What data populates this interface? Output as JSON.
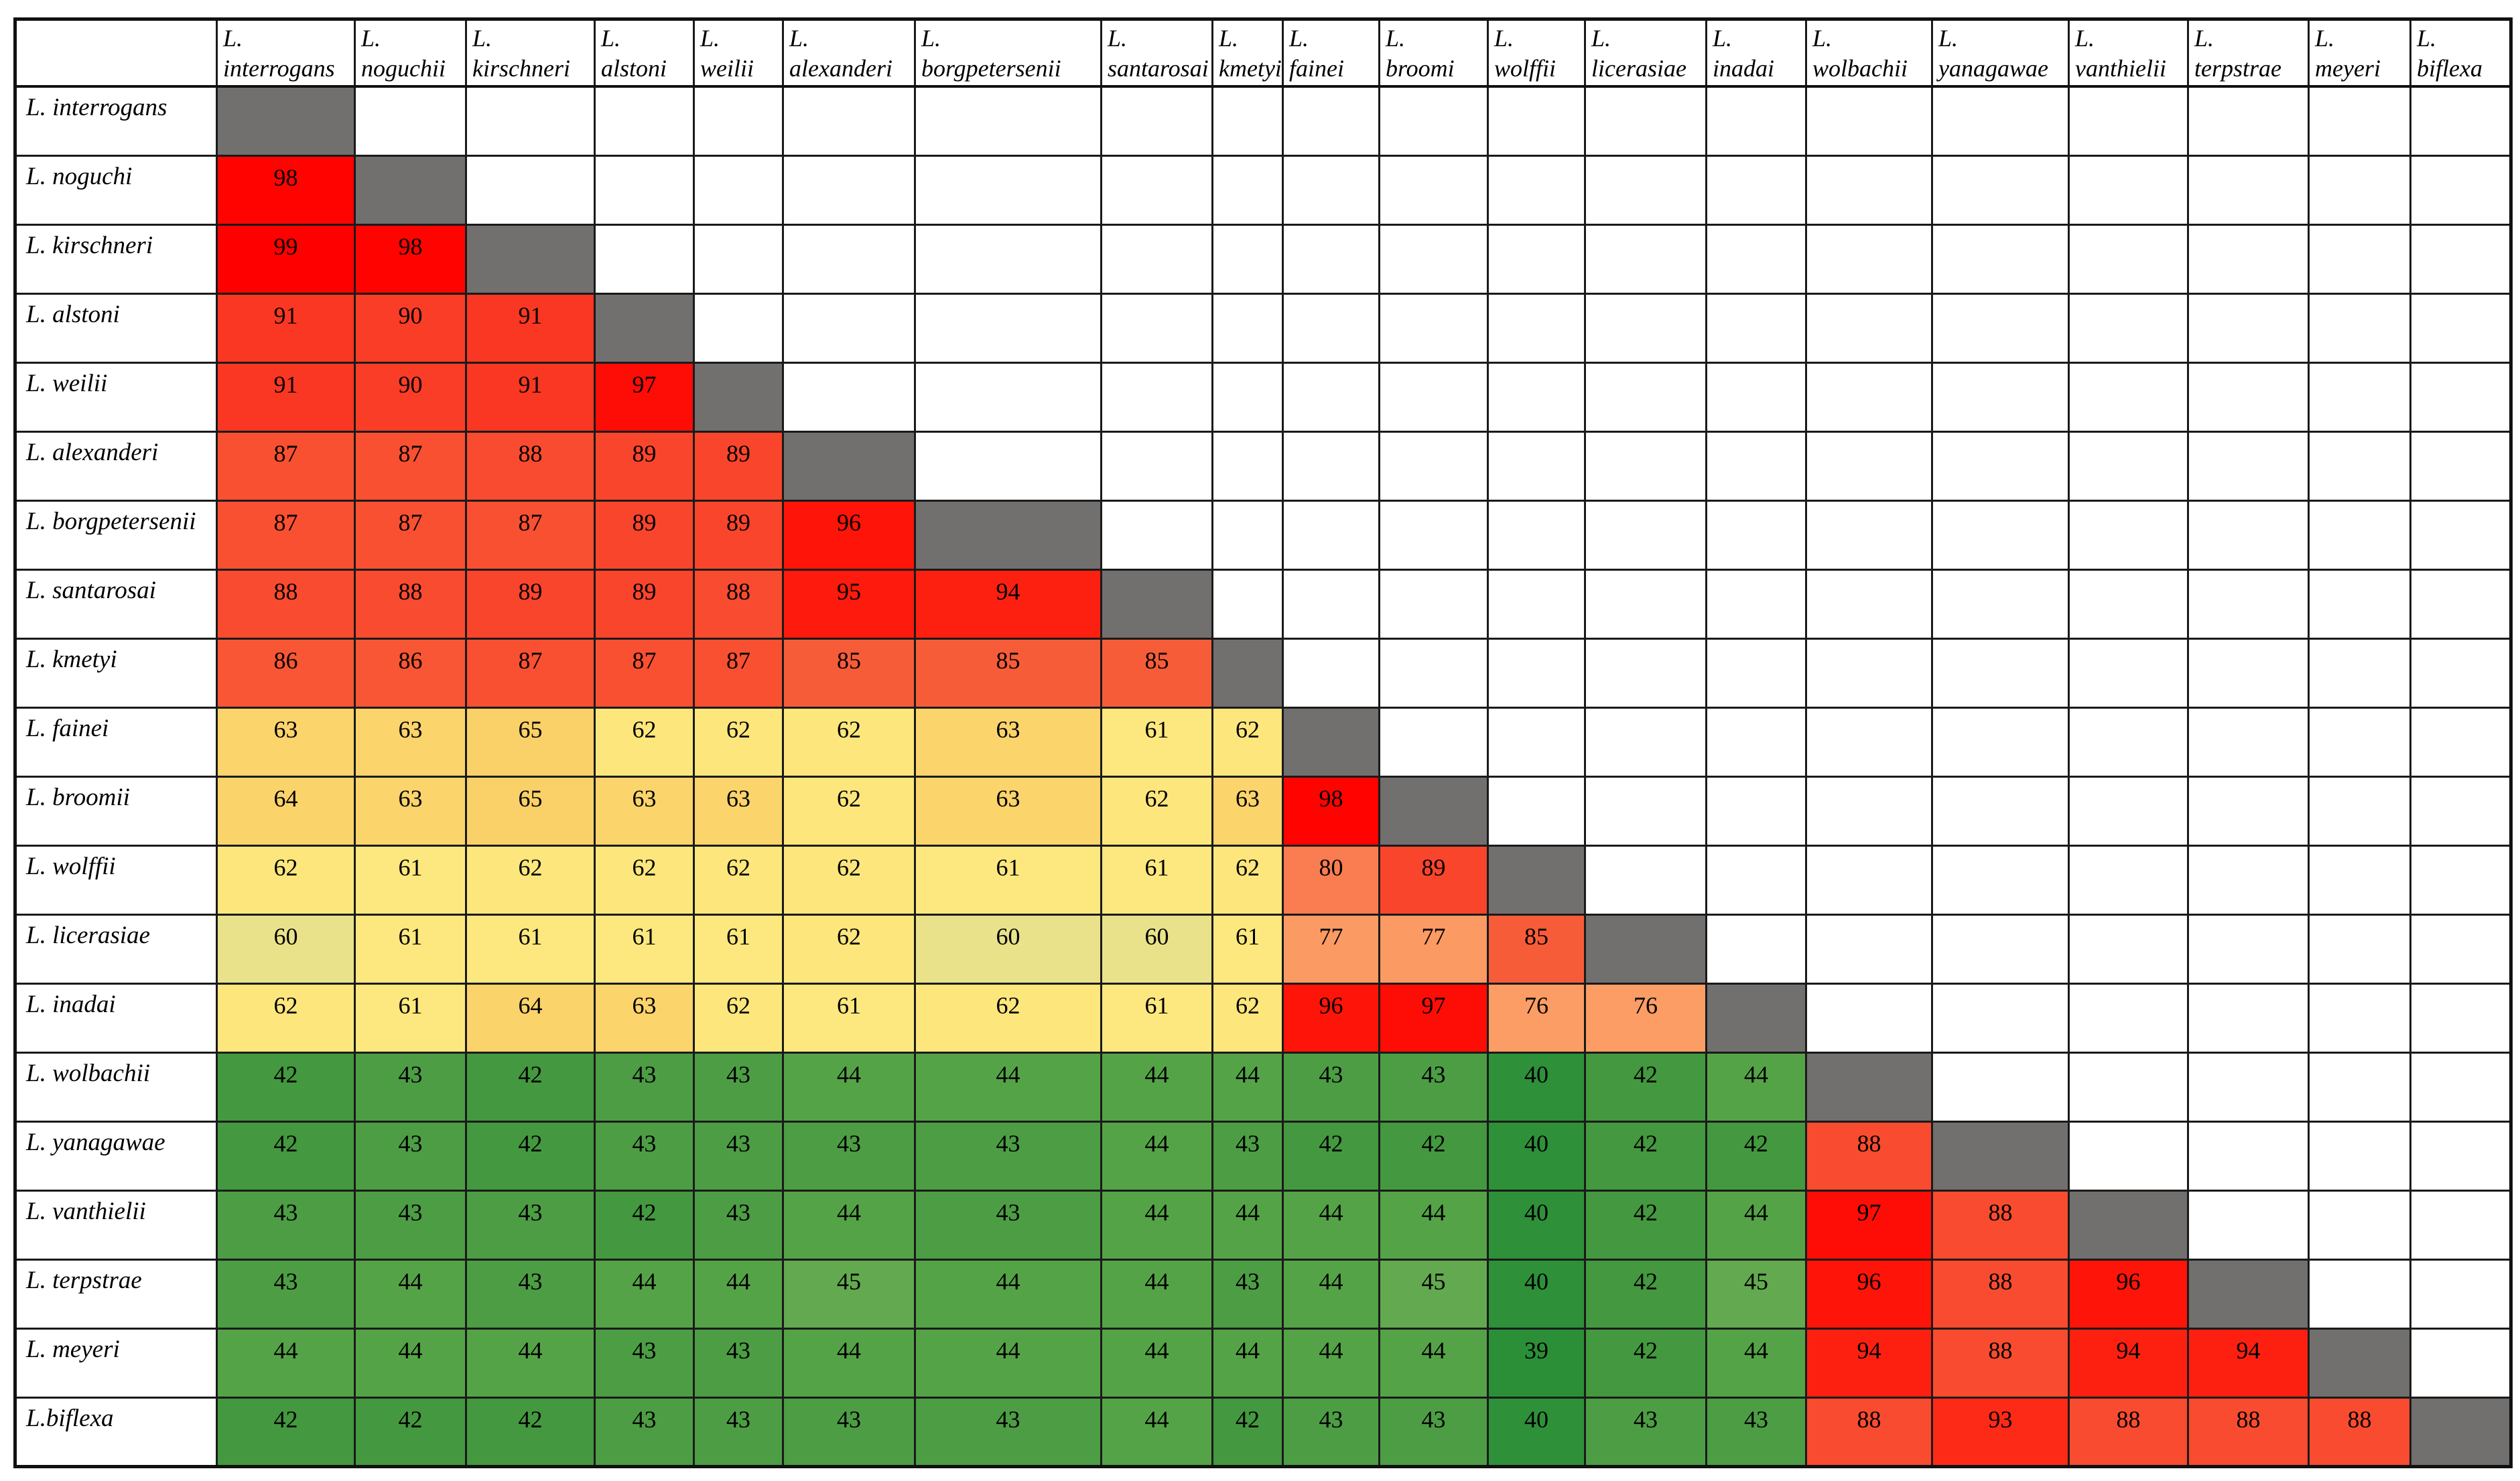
{
  "chart_data": {
    "type": "heatmap",
    "title": "",
    "column_labels": [
      "L. interrogans",
      "L. noguchii",
      "L. kirschneri",
      "L. alstoni",
      "L. weilii",
      "L. alexanderi",
      "L. borgpetersenii",
      "L. santarosai",
      "L. kmetyi",
      "L. fainei",
      "L. broomi",
      "L. wolffii",
      "L. licerasiae",
      "L. inadai",
      "L. wolbachii",
      "L. yanagawae",
      "L. vanthielii",
      "L. terpstrae",
      "L. meyeri",
      "L. biflexa"
    ],
    "row_labels": [
      "L. interrogans",
      "L. noguchi",
      "L. kirschneri",
      "L. alstoni",
      "L. weilii",
      "L. alexanderi",
      "L. borgpetersenii",
      "L. santarosai",
      "L. kmetyi",
      "L. fainei",
      "L. broomii",
      "L. wolffii",
      "L. licerasiae",
      "L. inadai",
      "L. wolbachii",
      "L. yanagawae",
      "L. vanthielii",
      "L. terpstrae",
      "L. meyeri",
      "L.biflexa"
    ],
    "values_lower_triangle": [
      [],
      [
        98
      ],
      [
        99,
        98
      ],
      [
        91,
        90,
        91
      ],
      [
        91,
        90,
        91,
        97
      ],
      [
        87,
        87,
        88,
        89,
        89
      ],
      [
        87,
        87,
        87,
        89,
        89,
        96
      ],
      [
        88,
        88,
        89,
        89,
        88,
        95,
        94
      ],
      [
        86,
        86,
        87,
        87,
        87,
        85,
        85,
        85
      ],
      [
        63,
        63,
        65,
        62,
        62,
        62,
        63,
        61,
        62
      ],
      [
        64,
        63,
        65,
        63,
        63,
        62,
        63,
        62,
        63,
        98
      ],
      [
        62,
        61,
        62,
        62,
        62,
        62,
        61,
        61,
        62,
        80,
        89
      ],
      [
        60,
        61,
        61,
        61,
        61,
        62,
        60,
        60,
        61,
        77,
        77,
        85
      ],
      [
        62,
        61,
        64,
        63,
        62,
        61,
        62,
        61,
        62,
        96,
        97,
        76,
        76
      ],
      [
        42,
        43,
        42,
        43,
        43,
        44,
        44,
        44,
        44,
        43,
        43,
        40,
        42,
        44
      ],
      [
        42,
        43,
        42,
        43,
        43,
        43,
        43,
        44,
        43,
        42,
        42,
        40,
        42,
        42,
        88
      ],
      [
        43,
        43,
        43,
        42,
        43,
        44,
        43,
        44,
        44,
        44,
        44,
        40,
        42,
        44,
        97,
        88
      ],
      [
        43,
        44,
        43,
        44,
        44,
        45,
        44,
        44,
        43,
        44,
        45,
        40,
        42,
        45,
        96,
        88,
        96
      ],
      [
        44,
        44,
        44,
        43,
        43,
        44,
        44,
        44,
        44,
        44,
        44,
        39,
        42,
        44,
        94,
        88,
        94,
        94
      ],
      [
        42,
        42,
        42,
        43,
        43,
        43,
        43,
        44,
        42,
        43,
        43,
        40,
        43,
        43,
        88,
        93,
        88,
        88,
        88
      ]
    ],
    "diagonal": "self-comparison (gray, no value)",
    "upper_triangle": "empty (white)",
    "legend_position": "none",
    "color_scale": {
      "low_value": 39,
      "mid_value": 62,
      "high_value": 99,
      "low_color": "#2B8F38",
      "mid_color": "#FDE77D",
      "high_color": "#FF0000"
    }
  },
  "colors": {
    "diagonal": "#726F6F",
    "grid_line": "#1A1A1A",
    "background": "#FFFFFF",
    "text": "#000000",
    "value_colors": {
      "39": "#2B8F38",
      "40": "#2E9039",
      "42": "#44983F",
      "43": "#4D9D45",
      "44": "#55A347",
      "45": "#63A94F",
      "60": "#E9E28A",
      "61": "#FDE87F",
      "62": "#FDE77D",
      "63": "#FBD46C",
      "64": "#FBD36B",
      "65": "#FAD168",
      "76": "#FB9D64",
      "77": "#FB9B63",
      "80": "#FA7C51",
      "85": "#F75C39",
      "86": "#F85634",
      "87": "#F85031",
      "88": "#F94B2F",
      "89": "#F9452C",
      "90": "#FA3D27",
      "91": "#FA3722",
      "93": "#FD2A17",
      "94": "#FD2011",
      "95": "#FE1A0C",
      "96": "#FE1408",
      "97": "#FE0D06",
      "98": "#FF0301",
      "99": "#FF0000"
    }
  }
}
